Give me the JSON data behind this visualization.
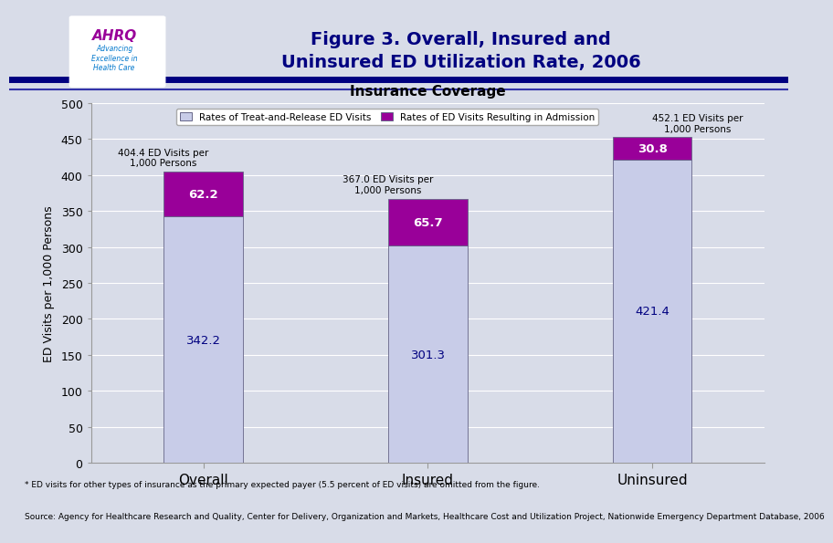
{
  "categories": [
    "Overall",
    "Insured",
    "Uninsured"
  ],
  "treat_release": [
    342.2,
    301.3,
    421.4
  ],
  "admission": [
    62.2,
    65.7,
    30.8
  ],
  "totals": [
    404.4,
    367.0,
    452.1
  ],
  "total_labels": [
    "404.4 ED Visits per\n1,000 Persons",
    "367.0 ED Visits per\n1,000 Persons",
    "452.1 ED Visits per\n1,000 Persons"
  ],
  "treat_release_color": "#c8cce8",
  "admission_color": "#990099",
  "chart_title": "Insurance Coverage",
  "ylabel": "ED Visits per 1,000 Persons",
  "ylim": [
    0,
    500
  ],
  "yticks": [
    0,
    50,
    100,
    150,
    200,
    250,
    300,
    350,
    400,
    450,
    500
  ],
  "legend_label_1": "Rates of Treat-and-Release ED Visits",
  "legend_label_2": "Rates of ED Visits Resulting in Admission",
  "footnote1": "* ED visits for other types of insurance as the primary expected payer (5.5 percent of ED visits) are omitted from the figure.",
  "footnote2": "Source: Agency for Healthcare Research and Quality, Center for Delivery, Organization and Markets, Healthcare Cost and Utilization Project, Nationwide Emergency Department Database, 2006",
  "main_title_line1": "Figure 3. Overall, Insured and",
  "main_title_line2": "Uninsured ED Utilization Rate, 2006",
  "dot_background": "#d8dce8",
  "white_bg": "#ffffff",
  "bar_width": 0.35,
  "divider_color_thick": "#000080",
  "divider_color_thin": "#3333aa",
  "title_color": "#000080"
}
